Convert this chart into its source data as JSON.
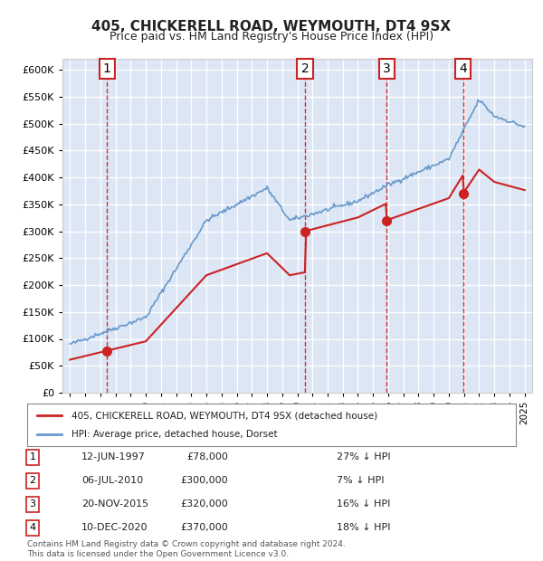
{
  "title1": "405, CHICKERELL ROAD, WEYMOUTH, DT4 9SX",
  "title2": "Price paid vs. HM Land Registry's House Price Index (HPI)",
  "ylabel": "",
  "ylim": [
    0,
    620000
  ],
  "yticks": [
    0,
    50000,
    100000,
    150000,
    200000,
    250000,
    300000,
    350000,
    400000,
    450000,
    500000,
    550000,
    600000
  ],
  "xlim_start": 1994.5,
  "xlim_end": 2025.5,
  "background_color": "#dce6f5",
  "plot_bg_color": "#dce6f5",
  "grid_color": "#ffffff",
  "sale_points": [
    {
      "year": 1997.44,
      "price": 78000,
      "label": "1"
    },
    {
      "year": 2010.51,
      "price": 300000,
      "label": "2"
    },
    {
      "year": 2015.89,
      "price": 320000,
      "label": "3"
    },
    {
      "year": 2020.94,
      "price": 370000,
      "label": "4"
    }
  ],
  "hpi_line_color": "#6699cc",
  "price_line_color": "#cc2222",
  "sale_point_color": "#cc2222",
  "vline_color": "#cc0000",
  "legend_label_price": "405, CHICKERELL ROAD, WEYMOUTH, DT4 9SX (detached house)",
  "legend_label_hpi": "HPI: Average price, detached house, Dorset",
  "table_rows": [
    {
      "num": "1",
      "date": "12-JUN-1997",
      "price": "£78,000",
      "pct": "27% ↓ HPI"
    },
    {
      "num": "2",
      "date": "06-JUL-2010",
      "price": "£300,000",
      "pct": "7% ↓ HPI"
    },
    {
      "num": "3",
      "date": "20-NOV-2015",
      "price": "£320,000",
      "pct": "16% ↓ HPI"
    },
    {
      "num": "4",
      "date": "10-DEC-2020",
      "price": "£370,000",
      "pct": "18% ↓ HPI"
    }
  ],
  "footer": "Contains HM Land Registry data © Crown copyright and database right 2024.\nThis data is licensed under the Open Government Licence v3.0.",
  "label_box_color": "#ffffff",
  "label_box_edge": "#cc2222"
}
